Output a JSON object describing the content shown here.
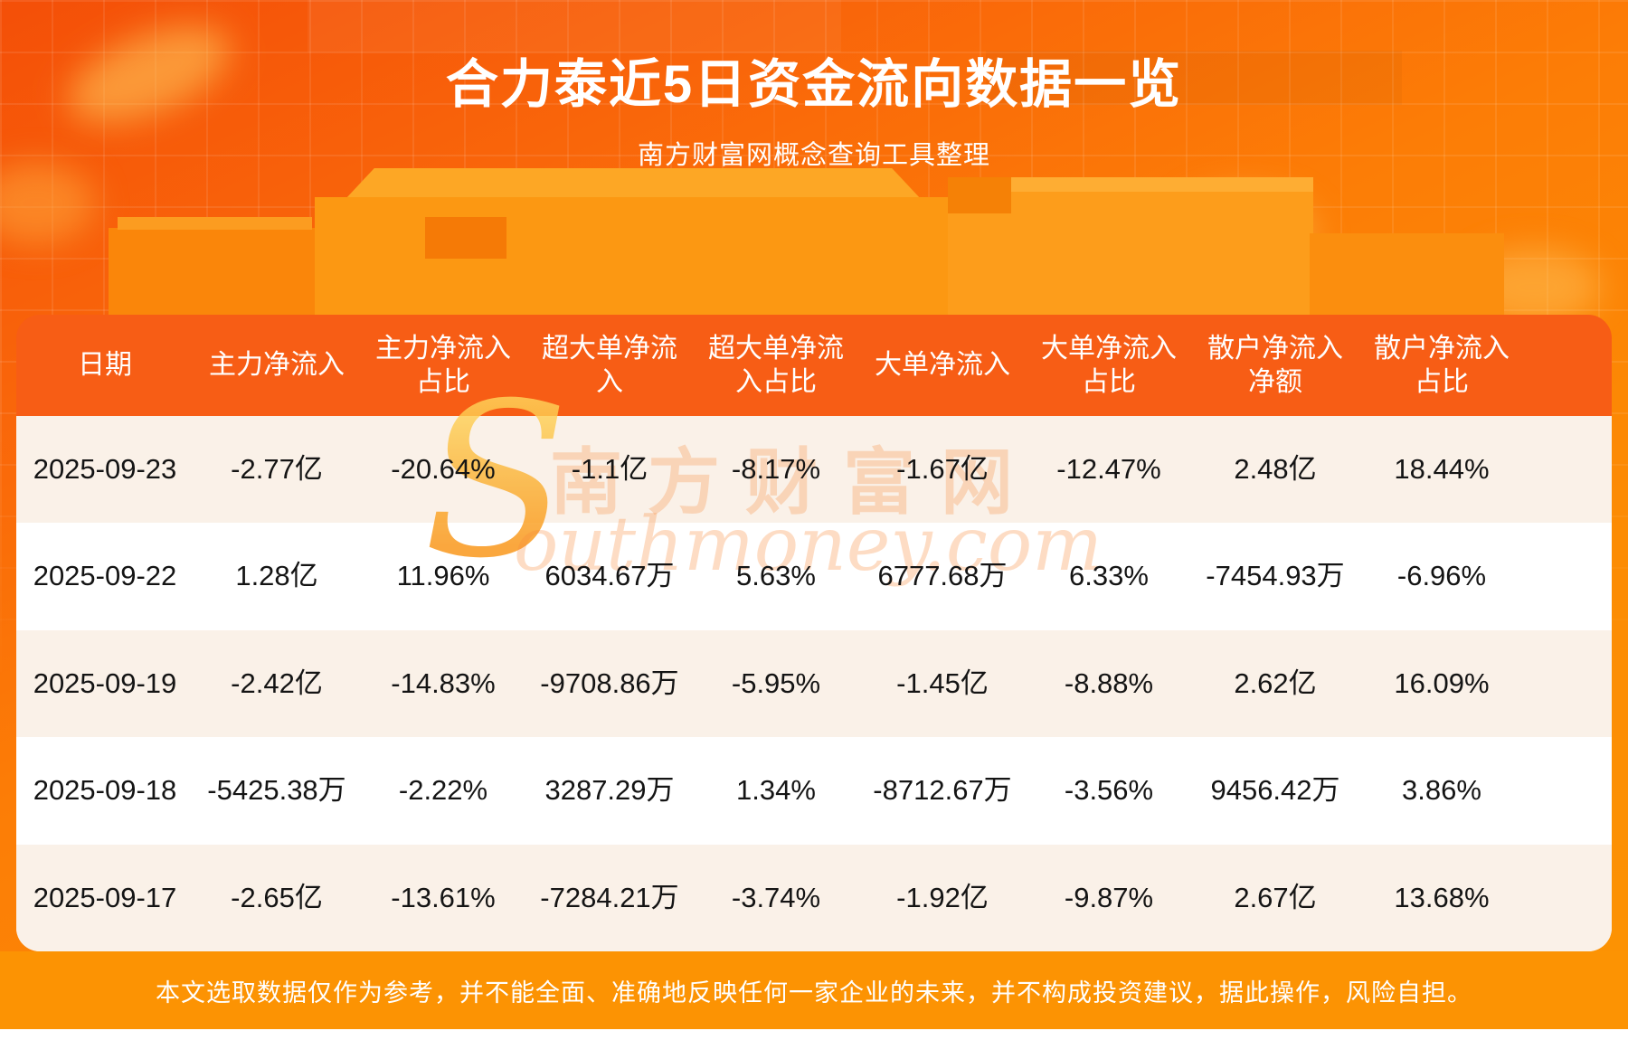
{
  "page": {
    "title": "合力泰近5日资金流向数据一览",
    "subtitle": "南方财富网概念查询工具整理",
    "disclaimer": "本文选取数据仅作为参考，并不能全面、准确地反映任何一家企业的未来，并不构成投资建议，据此操作，风险自担。"
  },
  "watermark": {
    "symbol": "S",
    "line1": "南方财富网",
    "line2": "outhmoney.com"
  },
  "colors": {
    "background_top": "#f44f08",
    "background_bottom": "#fc9303",
    "header_bg": "#f75d15",
    "row_odd_bg": "#faf1e8",
    "row_even_bg": "#ffffff",
    "header_text": "#ffffff",
    "body_text": "#141414",
    "footer_bg": "#fc9303"
  },
  "table_header_lines": [
    [
      "日期"
    ],
    [
      "主力净流入"
    ],
    [
      "主力净流入",
      "占比"
    ],
    [
      "超大单净流",
      "入"
    ],
    [
      "超大单净流",
      "入占比"
    ],
    [
      "大单净流入"
    ],
    [
      "大单净流入",
      "占比"
    ],
    [
      "散户净流入",
      "净额"
    ],
    [
      "散户净流入",
      "占比"
    ]
  ],
  "chart_data": {
    "type": "table",
    "title": "合力泰近5日资金流向数据一览",
    "columns": [
      "日期",
      "主力净流入",
      "主力净流入占比",
      "超大单净流入",
      "超大单净流入占比",
      "大单净流入",
      "大单净流入占比",
      "散户净流入净额",
      "散户净流入占比"
    ],
    "rows": [
      [
        "2025-09-23",
        "-2.77亿",
        "-20.64%",
        "-1.1亿",
        "-8.17%",
        "-1.67亿",
        "-12.47%",
        "2.48亿",
        "18.44%"
      ],
      [
        "2025-09-22",
        "1.28亿",
        "11.96%",
        "6034.67万",
        "5.63%",
        "6777.68万",
        "6.33%",
        "-7454.93万",
        "-6.96%"
      ],
      [
        "2025-09-19",
        "-2.42亿",
        "-14.83%",
        "-9708.86万",
        "-5.95%",
        "-1.45亿",
        "-8.88%",
        "2.62亿",
        "16.09%"
      ],
      [
        "2025-09-18",
        "-5425.38万",
        "-2.22%",
        "3287.29万",
        "1.34%",
        "-8712.67万",
        "-3.56%",
        "9456.42万",
        "3.86%"
      ],
      [
        "2025-09-17",
        "-2.65亿",
        "-13.61%",
        "-7284.21万",
        "-3.74%",
        "-1.92亿",
        "-9.87%",
        "2.67亿",
        "13.68%"
      ]
    ]
  }
}
